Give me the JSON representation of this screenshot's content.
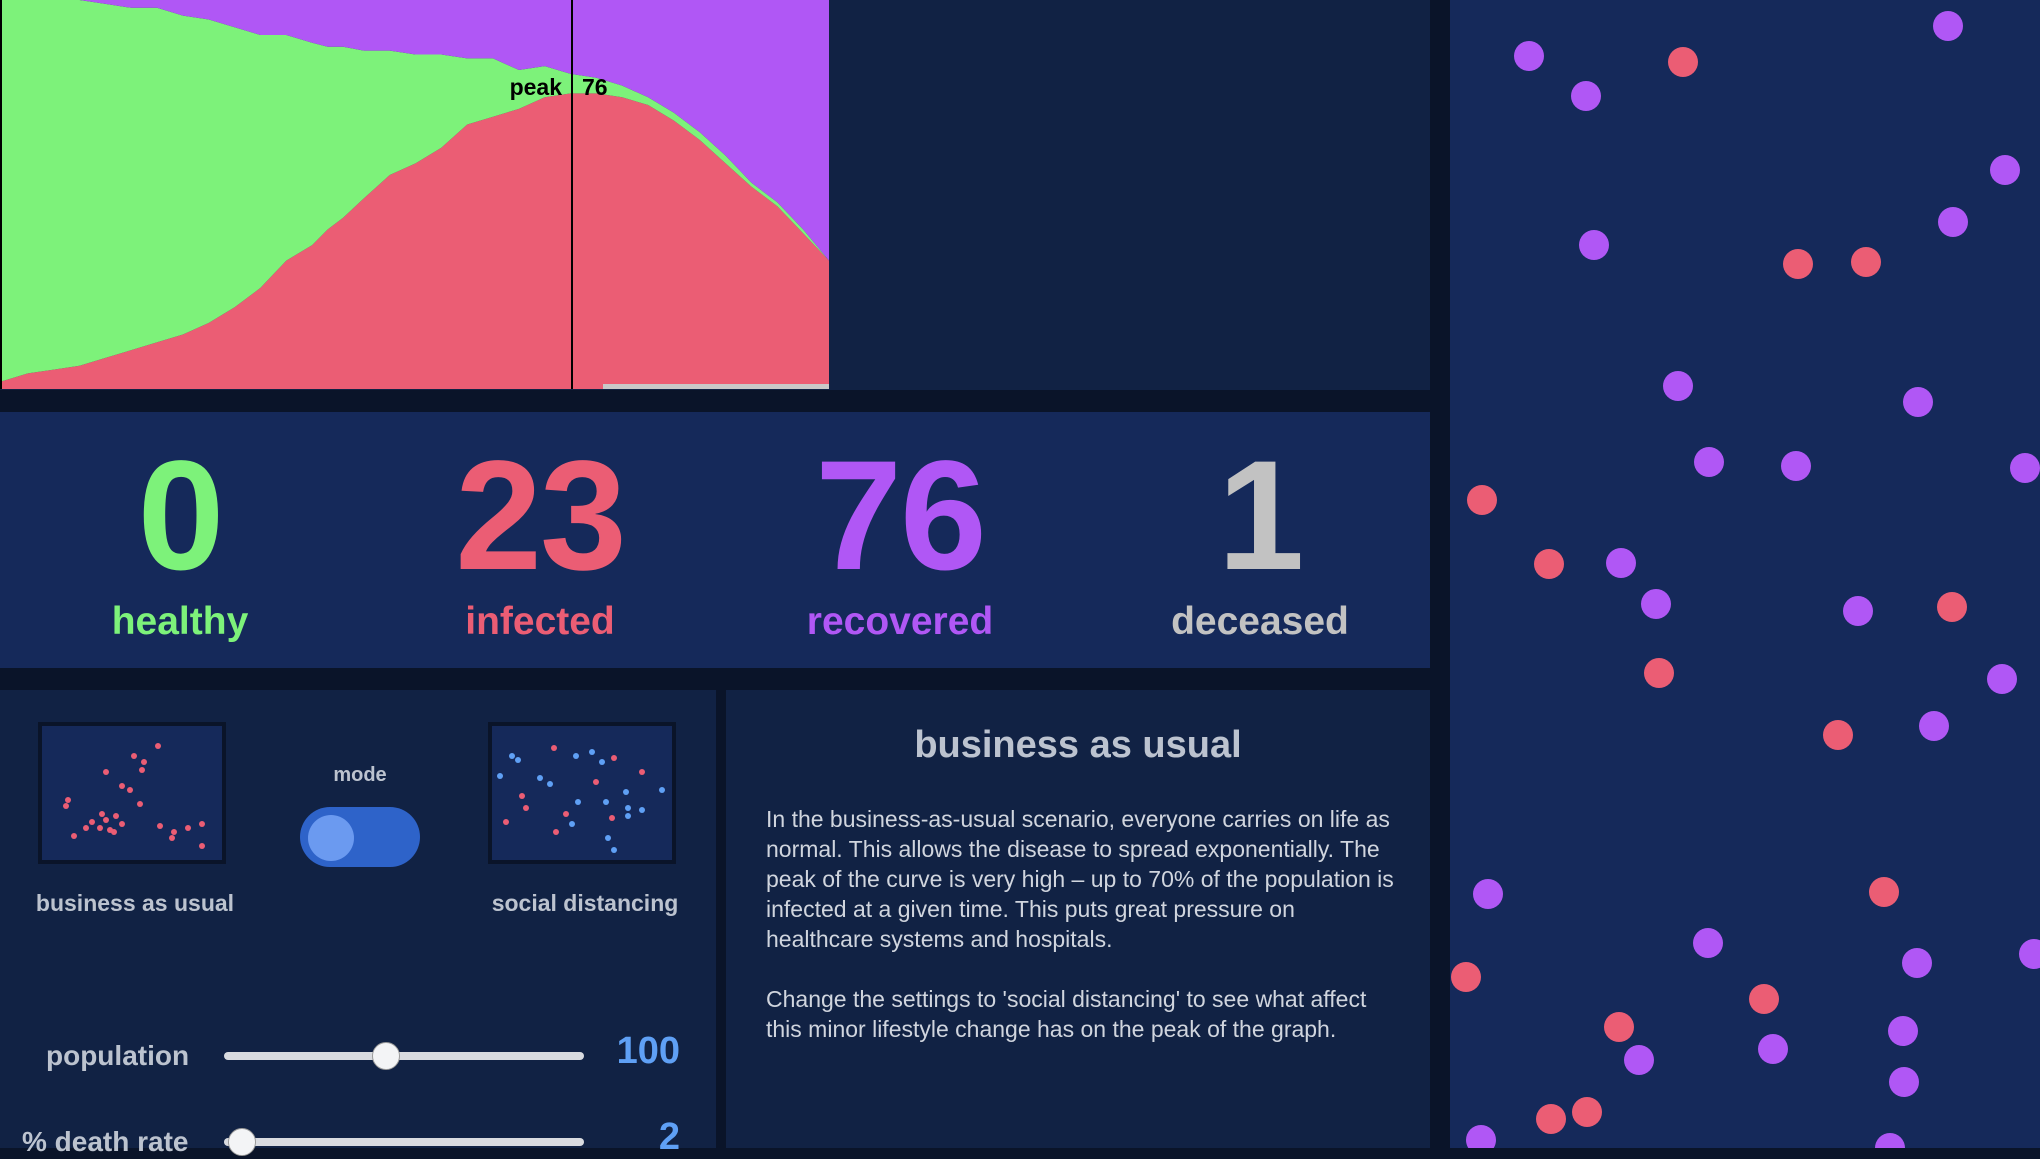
{
  "chart": {
    "peak_label": "peak",
    "peak_value": "76",
    "colors": {
      "healthy": "#7df27a",
      "infected": "#eb5d74",
      "recovered": "#b057f5"
    },
    "chart_data": {
      "type": "area",
      "stacked": true,
      "x": [
        0,
        0.05,
        0.1,
        0.15,
        0.2,
        0.25,
        0.3,
        0.35,
        0.4,
        0.45,
        0.5,
        0.55,
        0.6,
        0.63,
        0.66,
        0.7,
        0.75,
        0.8,
        0.85,
        0.9,
        0.95,
        1.0,
        1.05,
        1.1,
        1.15,
        1.2,
        1.25,
        1.3,
        1.35,
        1.4,
        1.45,
        1.5,
        1.55,
        1.6
      ],
      "series": [
        {
          "values": [
            2,
            4,
            5,
            6,
            8,
            10,
            12,
            14,
            17,
            21,
            26,
            33,
            37,
            41,
            44,
            49,
            55,
            58,
            62,
            68,
            70,
            72,
            75,
            76,
            76,
            75,
            73,
            69,
            64,
            58,
            52,
            47,
            40,
            33
          ]
        },
        {
          "values": [
            98,
            96,
            95,
            94,
            91,
            88,
            86,
            82,
            78,
            72,
            65,
            58,
            52,
            47,
            44,
            38,
            32,
            28,
            24,
            17,
            15,
            10,
            8,
            5,
            4,
            3,
            2,
            2,
            2,
            2,
            1,
            1,
            1,
            0
          ]
        },
        {
          "values": [
            0,
            0,
            0,
            0,
            1,
            2,
            2,
            4,
            5,
            7,
            9,
            9,
            11,
            12,
            12,
            13,
            13,
            14,
            14,
            15,
            15,
            18,
            17,
            19,
            20,
            22,
            25,
            29,
            34,
            40,
            47,
            52,
            59,
            67
          ]
        }
      ]
    }
  },
  "stats": [
    {
      "value": "0",
      "label": "healthy"
    },
    {
      "value": "23",
      "label": "infected"
    },
    {
      "value": "76",
      "label": "recovered"
    },
    {
      "value": "1",
      "label": "deceased"
    }
  ],
  "controls": {
    "left_preview_label": "business as usual",
    "mode_label": "mode",
    "right_preview_label": "social distancing",
    "mode_on": true,
    "sliders": [
      {
        "label": "population",
        "value": "100",
        "position": 0.45
      },
      {
        "label": "% death rate",
        "value": "2",
        "position": 0.05
      }
    ]
  },
  "description": {
    "title": "business as usual",
    "paragraphs": [
      "In the business-as-usual scenario, everyone carries on life as normal. This allows the disease to spread exponentially. The peak of the curve is very high – up to 70% of the population is infected at a given time. This puts great pressure on healthcare systems and hospitals.",
      "Change the settings to 'social distancing' to see what affect this minor lifestyle change has on the peak of the graph."
    ]
  },
  "simulation": {
    "colors": {
      "infected": "#eb5d74",
      "recovered": "#b057f5"
    }
  }
}
